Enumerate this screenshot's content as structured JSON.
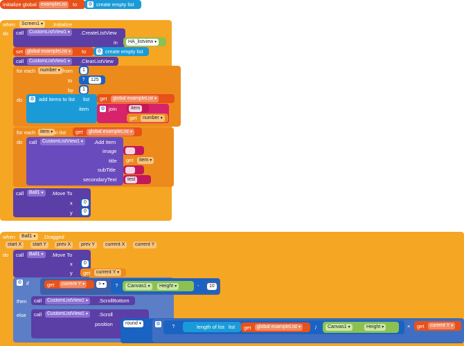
{
  "init_block": {
    "prefix": "initialize global",
    "var_name": "exampleList",
    "to": "to",
    "create_empty_list": "create empty list"
  },
  "screen_event": {
    "when": "when",
    "component": "Screen1",
    "event": ".Initialize",
    "do": "do"
  },
  "create_list_view": {
    "call": "call",
    "component": "CustomListView1",
    "method": ".CreateListView",
    "in_label": "in",
    "in_value": "HA_listview"
  },
  "set_list": {
    "set": "set",
    "var": "global exampleList",
    "to": "to",
    "value": "create empty list"
  },
  "clear_list_view": {
    "call": "call",
    "component": "CustomListView1",
    "method": ".ClearListView"
  },
  "for_range": {
    "for_each": "for each",
    "var": "number",
    "from": "from",
    "from_val": "1",
    "to": "to",
    "to_val": "125",
    "by": "by",
    "by_val": "1",
    "do": "do"
  },
  "add_items": {
    "label": "add items to list",
    "list": "list",
    "get": "get",
    "list_var": "global exampleList",
    "item": "item",
    "join": "join",
    "join_text": "item",
    "get_number": "number"
  },
  "for_list": {
    "for_each": "for each",
    "var": "item",
    "in_list": "in list",
    "get": "get",
    "list_var": "global exampleList",
    "do": "do"
  },
  "add_item": {
    "call": "call",
    "component": "CustomListView1",
    "method": ".Add Item",
    "image": "image",
    "title": "title",
    "title_get": "get",
    "title_var": "item",
    "subtitle": "subTitle",
    "secondary": "secondaryText",
    "secondary_val": "test"
  },
  "ball_move1": {
    "call": "call",
    "component": "Ball1",
    "method": ".Move To",
    "x": "x",
    "x_val": "0",
    "y": "y",
    "y_val": "0"
  },
  "drag_event": {
    "when": "when",
    "component": "Ball1",
    "event": ".Dragged",
    "params": [
      "start X",
      "start Y",
      "prev X",
      "prev Y",
      "current X",
      "current Y"
    ],
    "do": "do"
  },
  "ball_move2": {
    "call": "call",
    "component": "Ball1",
    "method": ".Move To",
    "x": "x",
    "x_val": "0",
    "y": "y",
    "y_get": "get",
    "y_var": "current Y"
  },
  "if_block": {
    "if": "if",
    "get": "get",
    "var": "current Y",
    "op": ">",
    "canvas": "Canvas1",
    "height": "Height",
    "minus": "-",
    "minus_val": "10",
    "then": "then",
    "else": "else"
  },
  "scroll_bottom": {
    "call": "call",
    "component": "CustomListView1",
    "method": ".ScrollBottom"
  },
  "scroll": {
    "call": "call",
    "component": "CustomListView1",
    "method": ".Scroll",
    "position": "position",
    "round": "round",
    "length_label": "length of list",
    "list": "list",
    "get": "get",
    "list_var": "global exampleList",
    "div": "/",
    "canvas": "Canvas1",
    "height": "Height",
    "times": "×",
    "y_get": "get",
    "y_var": "current Y"
  }
}
